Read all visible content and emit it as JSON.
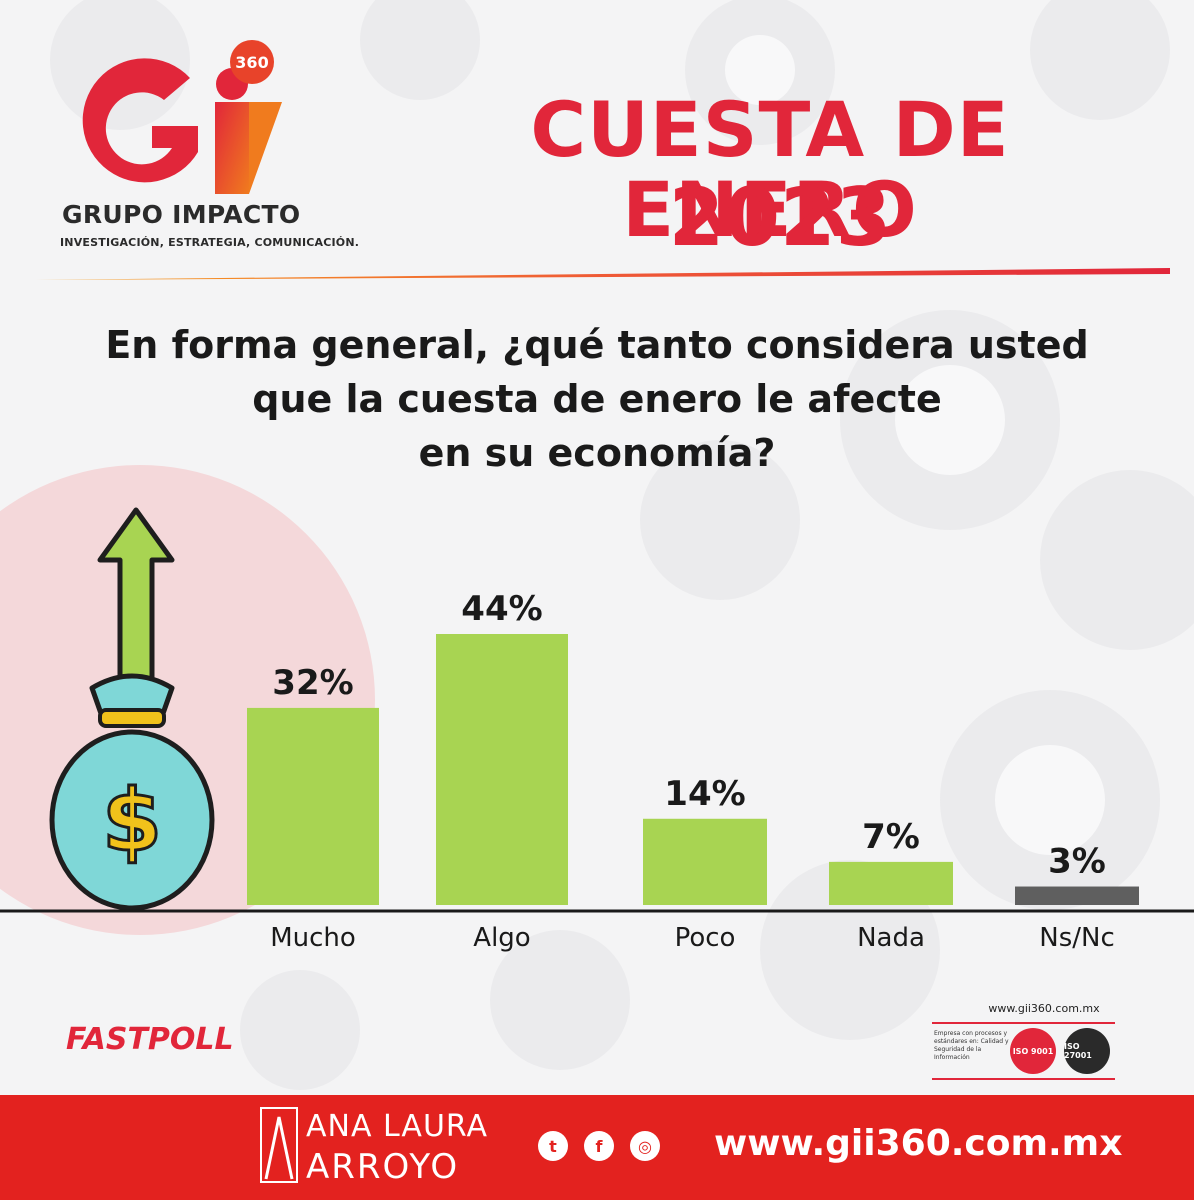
{
  "brand": {
    "logo_letters": "Gi",
    "logo_badge": "360",
    "name": "GRUPO IMPACTO",
    "tagline": "INVESTIGACIÓN, ESTRATEGIA, COMUNICACIÓN."
  },
  "title": {
    "line1": "CUESTA DE ENERO",
    "line2": "2023"
  },
  "question": {
    "line1": "En forma general, ¿qué tanto considera usted",
    "line2": "que la cuesta de enero le afecte",
    "line3": "en su economía?"
  },
  "chart_data": {
    "type": "bar",
    "categories": [
      "Mucho",
      "Algo",
      "Poco",
      "Nada",
      "Ns/Nc"
    ],
    "values": [
      32,
      44,
      14,
      7,
      3
    ],
    "value_labels": [
      "32%",
      "44%",
      "14%",
      "7%",
      "3%"
    ],
    "colors": [
      "#a8d452",
      "#a8d452",
      "#a8d452",
      "#a8d452",
      "#5f5f5f"
    ],
    "ylim": [
      0,
      44
    ],
    "grid": false,
    "legend": "none"
  },
  "illustration": {
    "bag_symbol": "$",
    "icon": "money-bag-arrow-up-icon"
  },
  "fastpoll": "FASTPOLL",
  "certification": {
    "url": "www.gii360.com.mx",
    "text": "Empresa con procesos y estándares en: Calidad y Seguridad de la Información",
    "iso1": "ISO 9001",
    "iso2": "ISO 27001"
  },
  "footer": {
    "name_line1": "ANA LAURA",
    "name_line2": "ARROYO",
    "url": "www.gii360.com.mx",
    "social": [
      "twitter-icon",
      "facebook-icon",
      "instagram-icon"
    ],
    "accent": "#e3221f"
  }
}
